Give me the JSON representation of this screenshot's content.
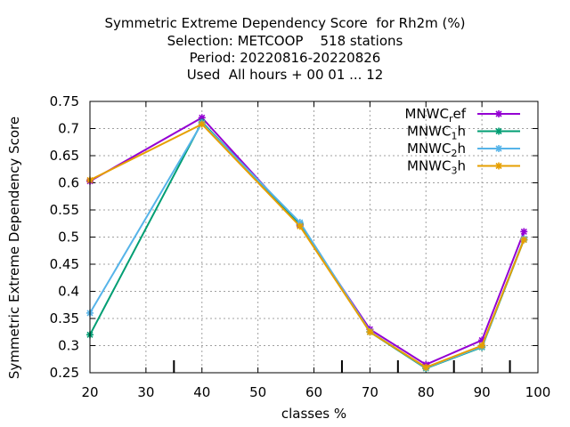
{
  "chart_data": {
    "type": "line",
    "title_lines": [
      "Symmetric Extreme Dependency Score  for Rh2m (%)",
      "Selection: METCOOP    518 stations",
      "Period: 20220816-20220826",
      "Used  All hours + 00 01 ... 12"
    ],
    "xlabel": "classes %",
    "ylabel": "Symmetric Extreme Dependency Score",
    "xlim": [
      20,
      100
    ],
    "ylim": [
      0.25,
      0.75
    ],
    "xticks": [
      20,
      30,
      40,
      50,
      60,
      70,
      80,
      90,
      100
    ],
    "yticks": [
      "0.25",
      "0.3",
      "0.35",
      "0.4",
      "0.45",
      "0.5",
      "0.55",
      "0.6",
      "0.65",
      "0.7",
      "0.75"
    ],
    "minor_xticks": [
      35,
      65,
      75,
      85,
      95
    ],
    "grid": true,
    "legend_position": "top-right",
    "series": [
      {
        "name_base": "MNWC",
        "name_sub": "r",
        "name_rest": "ef",
        "color": "#9400d3",
        "x": [
          20,
          40,
          57.5,
          70,
          80,
          90,
          97.5
        ],
        "y": [
          0.603,
          0.72,
          0.522,
          0.33,
          0.265,
          0.31,
          0.51
        ]
      },
      {
        "name_base": "MNWC",
        "name_sub": "1",
        "name_rest": "h",
        "color": "#009e73",
        "x": [
          20,
          40,
          57.5,
          70,
          80,
          90,
          97.5
        ],
        "y": [
          0.32,
          0.712,
          0.524,
          0.325,
          0.258,
          0.297,
          0.495
        ]
      },
      {
        "name_base": "MNWC",
        "name_sub": "2",
        "name_rest": "h",
        "color": "#56b4e9",
        "x": [
          20,
          40,
          57.5,
          70,
          80,
          90,
          97.5
        ],
        "y": [
          0.36,
          0.71,
          0.527,
          0.326,
          0.259,
          0.298,
          0.497
        ]
      },
      {
        "name_base": "MNWC",
        "name_sub": "3",
        "name_rest": "h",
        "color": "#e69f00",
        "x": [
          20,
          40,
          57.5,
          70,
          80,
          90,
          97.5
        ],
        "y": [
          0.605,
          0.708,
          0.52,
          0.325,
          0.26,
          0.3,
          0.495
        ]
      }
    ]
  }
}
